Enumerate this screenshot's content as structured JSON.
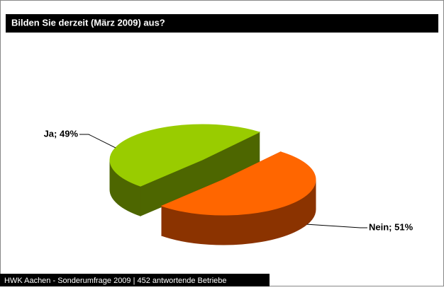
{
  "chart_data": {
    "type": "pie3d",
    "title": "Bilden Sie derzeit (März 2009) aus?",
    "footer": "HWK Aachen - Sonderumfrage 2009 | 452 antwortende Betriebe",
    "categories": [
      "Ja",
      "Nein"
    ],
    "values": [
      49,
      51
    ],
    "value_labels": [
      "Ja; 49%",
      "Nein; 51%"
    ],
    "colors": [
      "#99cc00",
      "#ff6600"
    ],
    "side_colors": [
      "#4d6600",
      "#8b3300"
    ]
  }
}
